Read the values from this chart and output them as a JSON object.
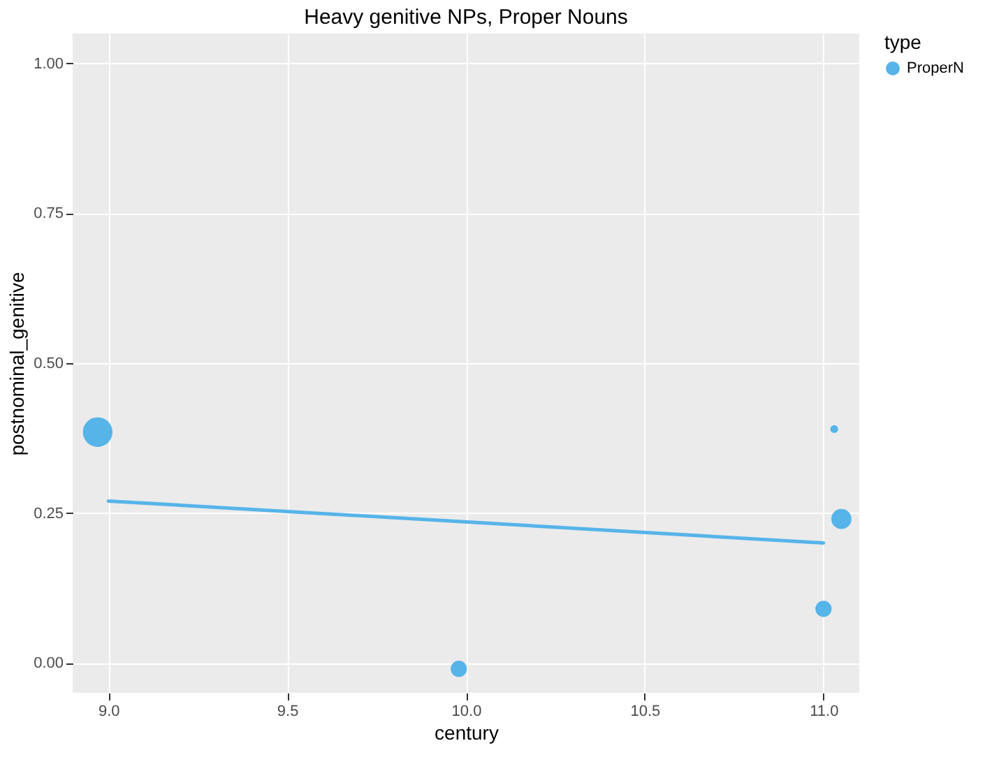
{
  "chart_data": {
    "type": "bubble",
    "title": "Heavy genitive NPs, Proper Nouns",
    "xlabel": "century",
    "ylabel": "postnominal_genitive",
    "legend_title": "type",
    "legend": "right",
    "grid": true,
    "xlim": [
      8.9,
      11.1
    ],
    "xticks": [
      {
        "value": 9,
        "label": "9.0"
      },
      9.5,
      {
        "value": 10,
        "label": "10.0"
      },
      10.5,
      {
        "value": 11,
        "label": "11.0"
      }
    ],
    "ylim": [
      -0.05,
      1.05
    ],
    "yticks": [
      {
        "value": 0,
        "label": "0.00"
      },
      0.25,
      {
        "value": 0.5,
        "label": "0.50"
      },
      0.75,
      {
        "value": 1,
        "label": "1.00"
      }
    ],
    "series": [
      {
        "name": "ProperN",
        "color": "#56b4e9",
        "x": [
          8.97,
          9.98,
          11.0,
          11.03,
          11.05
        ],
        "values": [
          0.385,
          -0.01,
          0.09,
          0.39,
          0.24
        ],
        "sizes": [
          1,
          0.3,
          0.3,
          0.07,
          0.46
        ]
      },
      {
        "type": "line",
        "color": "#56b4e9",
        "x": [
          9.0,
          11.0
        ],
        "values": [
          0.27,
          0.2
        ]
      }
    ]
  }
}
